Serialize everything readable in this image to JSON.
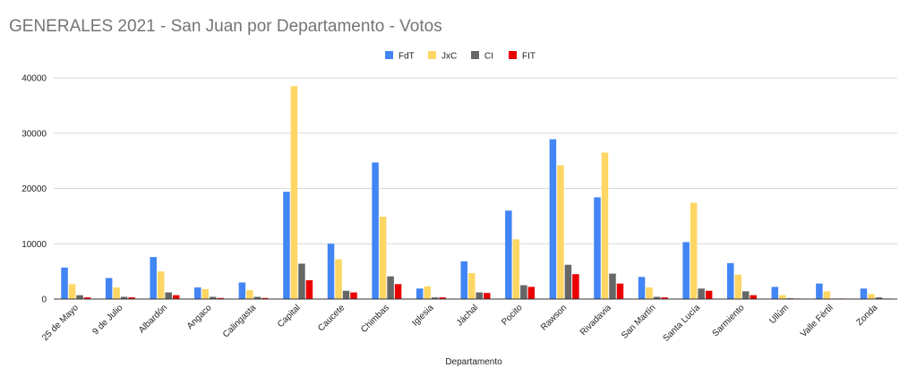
{
  "chart_data": {
    "type": "bar",
    "title": "GENERALES 2021 - San Juan por Departamento - Votos",
    "xlabel": "Departamento",
    "ylabel": "",
    "ylim": [
      0,
      40000
    ],
    "yticks": [
      0,
      10000,
      20000,
      30000,
      40000
    ],
    "grid": true,
    "legend_position": "top",
    "categories": [
      "25 de Mayo",
      "9 de Julio",
      "Albardón",
      "Angaco",
      "Calingasta",
      "Capital",
      "Caucete",
      "Chimbas",
      "Iglesia",
      "Jáchal",
      "Pocito",
      "Rawson",
      "Rivadavia",
      "San Martín",
      "Santa Lucía",
      "Sarmiento",
      "Ullúm",
      "Valle Fértil",
      "Zonda"
    ],
    "series": [
      {
        "name": "FdT",
        "color": "#4285f4",
        "values": [
          5700,
          3800,
          7600,
          2100,
          3000,
          19400,
          10000,
          24700,
          1900,
          6800,
          16000,
          28900,
          18400,
          4000,
          10300,
          6500,
          2200,
          2800,
          1900
        ]
      },
      {
        "name": "JxC",
        "color": "#fdd663",
        "values": [
          2700,
          2100,
          5000,
          1800,
          1600,
          38500,
          7200,
          14900,
          2300,
          4700,
          10800,
          24200,
          26500,
          2100,
          17400,
          4400,
          700,
          1400,
          900
        ]
      },
      {
        "name": "CI",
        "color": "#666666",
        "values": [
          700,
          400,
          1200,
          400,
          400,
          6400,
          1500,
          4100,
          300,
          1200,
          2500,
          6200,
          4600,
          400,
          1900,
          1400,
          150,
          100,
          300
        ]
      },
      {
        "name": "FIT",
        "color": "#ea0000",
        "values": [
          300,
          300,
          700,
          200,
          200,
          3400,
          1200,
          2700,
          300,
          1100,
          2200,
          4500,
          2800,
          300,
          1500,
          700,
          100,
          100,
          100
        ]
      }
    ]
  }
}
